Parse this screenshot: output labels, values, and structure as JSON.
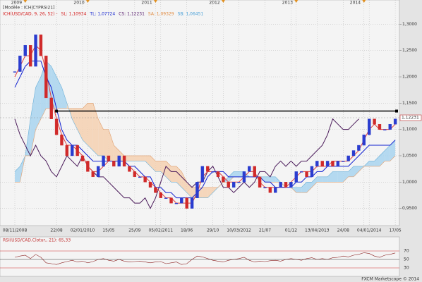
{
  "legend": {
    "model": "[Modèle : ICH|CYPRSI21]",
    "items": [
      {
        "text": "ICH(USD/CAD, 9, 26, 52) -",
        "color": "#d42020"
      },
      {
        "text": "SL: 1,10934",
        "color": "#d42020"
      },
      {
        "text": "TL: 1,07724",
        "color": "#1a2ad0"
      },
      {
        "text": "CS: 1,12231",
        "color": "#5a2070"
      },
      {
        "text": "SA: 1,09329",
        "color": "#e08a40"
      },
      {
        "text": "SB: 1,06451",
        "color": "#4aa0d8"
      }
    ]
  },
  "chart_data": {
    "type": "ichimoku",
    "categories": [
      "08/11/2008",
      null,
      null,
      null,
      null,
      null,
      null,
      null,
      "22/08",
      null,
      null,
      null,
      null,
      "02/01/2010",
      null,
      null,
      null,
      null,
      "15/05",
      null,
      null,
      null,
      null,
      "25/09",
      null,
      null,
      null,
      null,
      "05/02/2011",
      null,
      null,
      null,
      null,
      "18/06",
      null,
      null,
      null,
      null,
      "29/10",
      null,
      null,
      null,
      null,
      "10/03/2012",
      null,
      null,
      null,
      null,
      "21/07",
      null,
      null,
      null,
      null,
      "01/12",
      null,
      null,
      null,
      null,
      "13/04/2013",
      null,
      null,
      null,
      null,
      "24/08",
      null,
      null,
      null,
      null,
      "04/01/2014",
      null,
      null,
      null,
      null,
      "17/05"
    ],
    "year_categories": [
      null,
      null,
      "2009",
      null,
      null,
      null,
      null,
      null,
      null,
      null,
      null,
      null,
      null,
      null,
      "2010",
      null,
      null,
      null,
      null,
      null,
      null,
      null,
      null,
      null,
      null,
      null,
      null,
      "2011",
      null,
      null,
      null,
      null,
      null,
      null,
      null,
      null,
      null,
      null,
      null,
      null,
      "2012",
      null,
      null,
      null,
      null,
      null,
      null,
      null,
      null,
      null,
      null,
      null,
      null,
      null,
      "2013",
      null,
      null,
      null,
      null,
      null,
      null,
      null,
      null,
      null,
      null,
      null,
      null,
      "2014",
      null,
      null,
      null,
      null,
      null,
      null
    ],
    "series": [
      {
        "style": "candle",
        "up_color": "#2a3ccf",
        "down_color": "#d02a2a",
        "values": [
          1.21,
          1.24,
          1.26,
          1.22,
          1.28,
          1.24,
          1.16,
          1.12,
          1.09,
          1.07,
          1.05,
          1.07,
          1.05,
          1.04,
          1.02,
          1.01,
          1.03,
          1.05,
          1.04,
          1.03,
          1.05,
          1.03,
          1.02,
          1.01,
          1.01,
          1.0,
          0.99,
          0.98,
          0.97,
          0.97,
          0.96,
          0.96,
          0.97,
          0.95,
          0.97,
          1.0,
          1.03,
          1.02,
          1.02,
          1.01,
          1.0,
          0.99,
          1.0,
          1.0,
          1.02,
          1.03,
          1.01,
          0.99,
          0.99,
          0.98,
          0.99,
          1.0,
          0.99,
          1.0,
          1.02,
          1.02,
          1.01,
          1.03,
          1.04,
          1.03,
          1.04,
          1.03,
          1.04,
          1.04,
          1.05,
          1.06,
          1.07,
          1.09,
          1.12,
          1.11,
          1.1,
          1.1,
          1.11,
          1.12
        ]
      },
      {
        "style": "line",
        "color": "#e04040",
        "values": [
          1.2,
          1.22,
          1.24,
          1.24,
          1.26,
          1.25,
          1.21,
          1.16,
          1.12,
          1.09,
          1.07,
          1.07,
          1.06,
          1.05,
          1.03,
          1.02,
          1.02,
          1.03,
          1.04,
          1.04,
          1.04,
          1.04,
          1.03,
          1.02,
          1.01,
          1.01,
          1.0,
          0.99,
          0.98,
          0.97,
          0.97,
          0.96,
          0.96,
          0.96,
          0.96,
          0.98,
          1.01,
          1.02,
          1.02,
          1.02,
          1.01,
          1.0,
          1.0,
          1.0,
          1.01,
          1.02,
          1.02,
          1.0,
          0.99,
          0.99,
          0.99,
          0.99,
          0.99,
          1.0,
          1.01,
          1.02,
          1.02,
          1.02,
          1.03,
          1.03,
          1.03,
          1.04,
          1.04,
          1.04,
          1.04,
          1.05,
          1.06,
          1.08,
          1.1,
          1.11,
          1.1,
          1.1,
          1.1,
          1.11
        ]
      },
      {
        "style": "line",
        "color": "#1020d0",
        "values": [
          1.18,
          1.2,
          1.22,
          1.23,
          1.23,
          1.23,
          1.2,
          1.18,
          1.14,
          1.1,
          1.08,
          1.07,
          1.07,
          1.06,
          1.05,
          1.04,
          1.04,
          1.04,
          1.04,
          1.04,
          1.04,
          1.04,
          1.03,
          1.03,
          1.02,
          1.01,
          1.01,
          0.99,
          0.99,
          0.98,
          0.98,
          0.97,
          0.97,
          0.97,
          0.97,
          0.98,
          0.99,
          1.01,
          1.02,
          1.02,
          1.02,
          1.01,
          1.01,
          1.01,
          1.01,
          1.01,
          1.01,
          1.01,
          1.0,
          1.0,
          0.99,
          0.99,
          0.99,
          0.99,
          1.0,
          1.0,
          1.01,
          1.01,
          1.02,
          1.02,
          1.03,
          1.03,
          1.03,
          1.03,
          1.03,
          1.04,
          1.05,
          1.06,
          1.07,
          1.07,
          1.07,
          1.07,
          1.07,
          1.08
        ]
      },
      {
        "style": "cloud-a",
        "color": "#6ab0d8",
        "fill": "#a8d4ee",
        "values": [
          1.02,
          1.03,
          1.05,
          1.12,
          1.18,
          1.2,
          1.23,
          1.22,
          1.2,
          1.18,
          1.15,
          1.12,
          1.1,
          1.08,
          1.07,
          1.06,
          1.05,
          1.05,
          1.04,
          1.04,
          1.04,
          1.04,
          1.04,
          1.04,
          1.04,
          1.04,
          1.03,
          1.02,
          1.02,
          1.01,
          1.0,
          1.0,
          0.99,
          0.98,
          0.97,
          0.97,
          0.97,
          0.97,
          0.98,
          0.99,
          1.0,
          1.01,
          1.02,
          1.02,
          1.02,
          1.01,
          1.01,
          1.01,
          1.01,
          1.01,
          1.01,
          1.0,
          0.99,
          0.99,
          0.99,
          0.99,
          1.0,
          1.0,
          1.01,
          1.01,
          1.01,
          1.02,
          1.02,
          1.02,
          1.02,
          1.03,
          1.03,
          1.03,
          1.04,
          1.04,
          1.05,
          1.06,
          1.07,
          1.08
        ]
      },
      {
        "style": "cloud-b",
        "color": "#e0a070",
        "fill": "#f5d0b0",
        "values": [
          1.0,
          1.0,
          1.05,
          1.05,
          1.1,
          1.12,
          1.14,
          1.14,
          1.14,
          1.14,
          1.14,
          1.14,
          1.14,
          1.14,
          1.15,
          1.15,
          1.12,
          1.1,
          1.1,
          1.07,
          1.06,
          1.05,
          1.05,
          1.05,
          1.05,
          1.05,
          1.05,
          1.04,
          1.04,
          1.04,
          1.03,
          1.03,
          1.02,
          1.0,
          0.99,
          0.99,
          0.99,
          0.99,
          0.99,
          0.99,
          1.0,
          1.0,
          1.01,
          1.01,
          1.01,
          1.01,
          1.01,
          1.01,
          1.0,
          1.0,
          1.0,
          1.0,
          0.99,
          0.99,
          0.98,
          0.98,
          0.98,
          0.99,
          1.0,
          1.0,
          1.0,
          1.0,
          1.0,
          1.0,
          1.01,
          1.01,
          1.02,
          1.03,
          1.03,
          1.03,
          1.03,
          1.04,
          1.04,
          1.05
        ]
      }
    ],
    "lagging_color": "#4a1a5a",
    "hline": 1.135,
    "last_price": {
      "value": 1.12231,
      "label": "1,12231"
    },
    "ylim": [
      0.92,
      1.33
    ],
    "yticks": [
      {
        "value": 1.3,
        "label": "1,3000"
      },
      {
        "value": 1.25,
        "label": "1,2500"
      },
      {
        "value": 1.2,
        "label": "1,2000"
      },
      {
        "value": 1.15,
        "label": "1,1500"
      },
      {
        "value": 1.1,
        "label": "1,1000"
      },
      {
        "value": 1.05,
        "label": "1,0500"
      },
      {
        "value": 1.0,
        "label": "1,0000"
      },
      {
        "value": 0.95,
        "label": "0,9500"
      }
    ],
    "grid": true,
    "rsi": {
      "title": "RSI(USD/CAD.Clotur., 21): 65,33",
      "color": "#8b2020",
      "values": [
        55,
        58,
        60,
        52,
        62,
        55,
        42,
        40,
        38,
        42,
        45,
        48,
        44,
        46,
        42,
        45,
        50,
        52,
        48,
        46,
        50,
        46,
        44,
        45,
        46,
        44,
        42,
        44,
        45,
        40,
        42,
        44,
        38,
        40,
        50,
        58,
        56,
        52,
        48,
        46,
        44,
        48,
        50,
        52,
        55,
        48,
        44,
        46,
        45,
        47,
        48,
        46,
        50,
        52,
        50,
        48,
        52,
        54,
        50,
        52,
        50,
        54,
        55,
        58,
        56,
        60,
        62,
        66,
        64,
        58,
        55,
        60,
        62,
        65.33
      ],
      "ylim": [
        10,
        100
      ],
      "yticks": [
        70,
        50,
        30
      ],
      "tick_colors": [
        "#d03030",
        "#333333",
        "#d03030"
      ]
    },
    "footer": "FXCM Marketscope © 2014"
  }
}
